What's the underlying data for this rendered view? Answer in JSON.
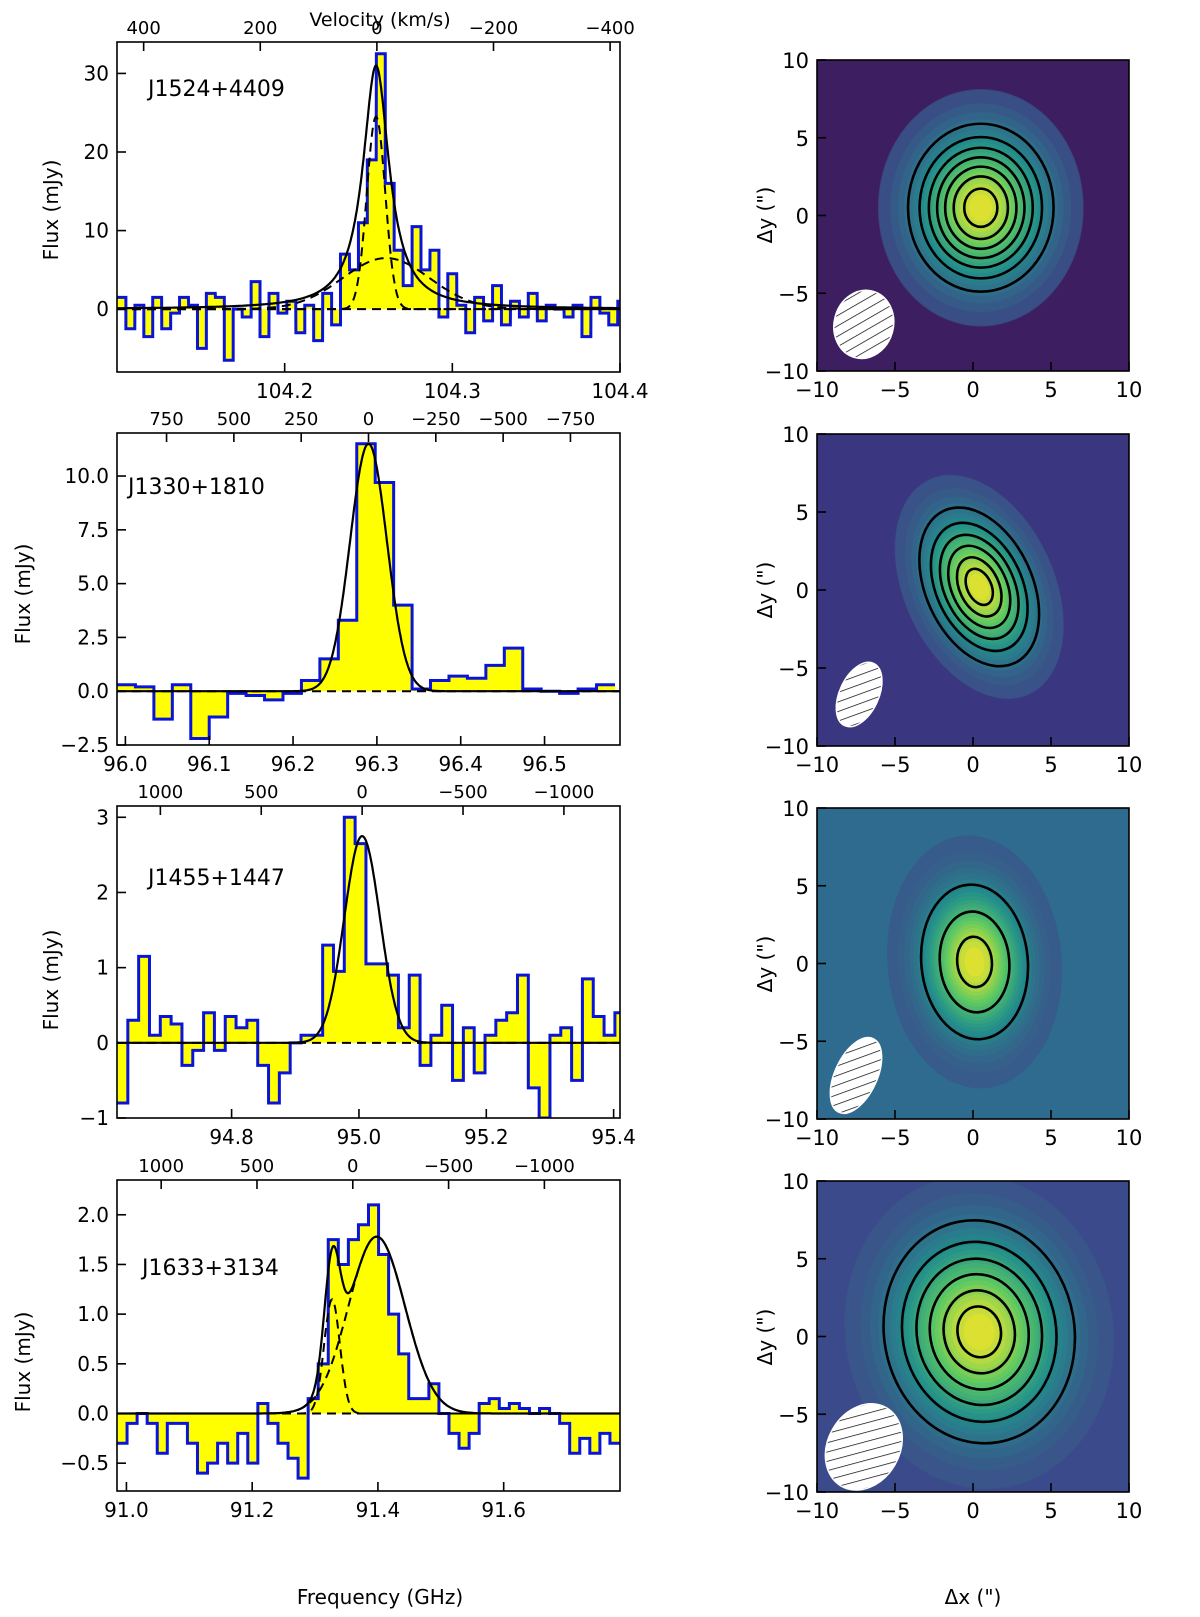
{
  "chart_data": [
    {
      "type": "spectrum",
      "source": "J1524+4409",
      "xlabel": "",
      "ylabel": "Flux (mJy)",
      "top_label": "Velocity (km/s)",
      "xlim": [
        104.1,
        104.4
      ],
      "ylim": [
        -8,
        34
      ],
      "xticks": [
        "104.2",
        "104.3",
        "104.4"
      ],
      "xtick_values": [
        104.2,
        104.3,
        104.4
      ],
      "yticks": [
        "0",
        "10",
        "20",
        "30"
      ],
      "ytick_values": [
        0,
        10,
        20,
        30
      ],
      "vticks": [
        "400",
        "200",
        "0",
        "−200",
        "−400"
      ],
      "vtick_values": [
        400,
        200,
        0,
        -200,
        -400
      ],
      "nu0": 104.255,
      "channels": [
        {
          "x": 104.1,
          "y": 1.5
        },
        {
          "x": 104.1053,
          "y": -2.5
        },
        {
          "x": 104.1107,
          "y": 0.5
        },
        {
          "x": 104.116,
          "y": -3.5
        },
        {
          "x": 104.1213,
          "y": 1.5
        },
        {
          "x": 104.1267,
          "y": -2.5
        },
        {
          "x": 104.132,
          "y": -0.5
        },
        {
          "x": 104.1373,
          "y": 1.5
        },
        {
          "x": 104.1427,
          "y": 0.5
        },
        {
          "x": 104.148,
          "y": -5.0
        },
        {
          "x": 104.1533,
          "y": 2.0
        },
        {
          "x": 104.1587,
          "y": 1.5
        },
        {
          "x": 104.164,
          "y": -6.5
        },
        {
          "x": 104.1693,
          "y": 0.0
        },
        {
          "x": 104.1747,
          "y": -1.0
        },
        {
          "x": 104.18,
          "y": 3.5
        },
        {
          "x": 104.1853,
          "y": -3.5
        },
        {
          "x": 104.1907,
          "y": 2.0
        },
        {
          "x": 104.196,
          "y": -0.5
        },
        {
          "x": 104.2013,
          "y": 1.0
        },
        {
          "x": 104.2067,
          "y": -3.0
        },
        {
          "x": 104.212,
          "y": 0.5
        },
        {
          "x": 104.2173,
          "y": -4.0
        },
        {
          "x": 104.2227,
          "y": 2.0
        },
        {
          "x": 104.228,
          "y": -2.0
        },
        {
          "x": 104.2333,
          "y": 7.0
        },
        {
          "x": 104.2387,
          "y": 5.0
        },
        {
          "x": 104.244,
          "y": 11.0
        },
        {
          "x": 104.2493,
          "y": 19.0
        },
        {
          "x": 104.2547,
          "y": 32.5
        },
        {
          "x": 104.26,
          "y": 16.0
        },
        {
          "x": 104.2653,
          "y": 7.5
        },
        {
          "x": 104.2707,
          "y": 3.0
        },
        {
          "x": 104.276,
          "y": 10.5
        },
        {
          "x": 104.2813,
          "y": 5.0
        },
        {
          "x": 104.2867,
          "y": 7.5
        },
        {
          "x": 104.292,
          "y": -1.0
        },
        {
          "x": 104.2973,
          "y": 4.5
        },
        {
          "x": 104.3027,
          "y": 0.5
        },
        {
          "x": 104.308,
          "y": -3.0
        },
        {
          "x": 104.3133,
          "y": 1.5
        },
        {
          "x": 104.3187,
          "y": -1.5
        },
        {
          "x": 104.324,
          "y": 3.0
        },
        {
          "x": 104.3293,
          "y": -2.0
        },
        {
          "x": 104.3347,
          "y": 1.0
        },
        {
          "x": 104.34,
          "y": -1.0
        },
        {
          "x": 104.3453,
          "y": 2.0
        },
        {
          "x": 104.3507,
          "y": -1.5
        },
        {
          "x": 104.356,
          "y": 0.5
        },
        {
          "x": 104.3613,
          "y": 0.0
        },
        {
          "x": 104.3667,
          "y": -1.0
        },
        {
          "x": 104.372,
          "y": 0.5
        },
        {
          "x": 104.3773,
          "y": -3.5
        },
        {
          "x": 104.3827,
          "y": 1.5
        },
        {
          "x": 104.388,
          "y": -0.5
        },
        {
          "x": 104.3933,
          "y": -2.0
        },
        {
          "x": 104.3987,
          "y": 1.0
        }
      ],
      "components": [
        {
          "amp": 24.5,
          "center": 104.2545,
          "sigma": 0.0055,
          "shape": "gauss"
        },
        {
          "amp": 6.5,
          "center": 104.2605,
          "sigma": 0.026,
          "shape": "gauss"
        }
      ],
      "show_components": true,
      "total_profile": "lorentz",
      "total": {
        "amp": 31.0,
        "center": 104.2545,
        "gamma": 0.0095
      }
    },
    {
      "type": "spectrum",
      "source": "J1330+1810",
      "xlabel": "",
      "ylabel": "Flux (mJy)",
      "top_label": "",
      "xlim": [
        95.99,
        96.59
      ],
      "ylim": [
        -2.5,
        12.0
      ],
      "xticks": [
        "96.0",
        "96.1",
        "96.2",
        "96.3",
        "96.4",
        "96.5"
      ],
      "xtick_values": [
        96.0,
        96.1,
        96.2,
        96.3,
        96.4,
        96.5
      ],
      "yticks": [
        "−2.5",
        "0.0",
        "2.5",
        "5.0",
        "7.5",
        "10.0"
      ],
      "ytick_values": [
        -2.5,
        0,
        2.5,
        5,
        7.5,
        10
      ],
      "vticks": [
        "750",
        "500",
        "250",
        "0",
        "−250",
        "−500",
        "−750"
      ],
      "vtick_values": [
        750,
        500,
        250,
        0,
        -250,
        -500,
        -750
      ],
      "nu0": 96.29,
      "channels": [
        {
          "x": 95.99,
          "y": 0.3
        },
        {
          "x": 96.012,
          "y": 0.2
        },
        {
          "x": 96.034,
          "y": -1.3
        },
        {
          "x": 96.056,
          "y": 0.3
        },
        {
          "x": 96.078,
          "y": -2.2
        },
        {
          "x": 96.1,
          "y": -1.2
        },
        {
          "x": 96.122,
          "y": -0.1
        },
        {
          "x": 96.144,
          "y": -0.2
        },
        {
          "x": 96.166,
          "y": -0.4
        },
        {
          "x": 96.188,
          "y": -0.1
        },
        {
          "x": 96.21,
          "y": 0.5
        },
        {
          "x": 96.232,
          "y": 1.5
        },
        {
          "x": 96.254,
          "y": 3.3
        },
        {
          "x": 96.276,
          "y": 11.5
        },
        {
          "x": 96.298,
          "y": 9.7
        },
        {
          "x": 96.32,
          "y": 4.0
        },
        {
          "x": 96.342,
          "y": 0.1
        },
        {
          "x": 96.364,
          "y": 0.5
        },
        {
          "x": 96.386,
          "y": 0.7
        },
        {
          "x": 96.408,
          "y": 0.6
        },
        {
          "x": 96.43,
          "y": 1.2
        },
        {
          "x": 96.452,
          "y": 2.0
        },
        {
          "x": 96.474,
          "y": 0.1
        },
        {
          "x": 96.496,
          "y": 0.0
        },
        {
          "x": 96.518,
          "y": -0.1
        },
        {
          "x": 96.54,
          "y": 0.1
        },
        {
          "x": 96.562,
          "y": 0.3
        }
      ],
      "components": [],
      "show_components": false,
      "total_profile": "gauss",
      "total": {
        "amp": 11.5,
        "center": 96.29,
        "sigma": 0.022
      }
    },
    {
      "type": "spectrum",
      "source": "J1455+1447",
      "xlabel": "",
      "ylabel": "Flux (mJy)",
      "top_label": "",
      "xlim": [
        94.62,
        95.41
      ],
      "ylim": [
        -1.0,
        3.15
      ],
      "xticks": [
        "94.8",
        "95.0",
        "95.2",
        "95.4"
      ],
      "xtick_values": [
        94.8,
        95.0,
        95.2,
        95.4
      ],
      "yticks": [
        "−1",
        "0",
        "1",
        "2",
        "3"
      ],
      "ytick_values": [
        -1,
        0,
        1,
        2,
        3
      ],
      "vticks": [
        "1000",
        "500",
        "0",
        "−500",
        "−1000"
      ],
      "vtick_values": [
        1000,
        500,
        0,
        -500,
        -1000
      ],
      "nu0": 95.005,
      "channels": [
        {
          "x": 94.62,
          "y": -0.8
        },
        {
          "x": 94.637,
          "y": 0.3
        },
        {
          "x": 94.654,
          "y": 1.15
        },
        {
          "x": 94.671,
          "y": 0.1
        },
        {
          "x": 94.688,
          "y": 0.35
        },
        {
          "x": 94.705,
          "y": 0.25
        },
        {
          "x": 94.722,
          "y": -0.3
        },
        {
          "x": 94.739,
          "y": -0.1
        },
        {
          "x": 94.756,
          "y": 0.4
        },
        {
          "x": 94.773,
          "y": -0.1
        },
        {
          "x": 94.79,
          "y": 0.35
        },
        {
          "x": 94.807,
          "y": 0.2
        },
        {
          "x": 94.824,
          "y": 0.3
        },
        {
          "x": 94.841,
          "y": -0.3
        },
        {
          "x": 94.858,
          "y": -0.8
        },
        {
          "x": 94.875,
          "y": -0.4
        },
        {
          "x": 94.892,
          "y": 0.0
        },
        {
          "x": 94.909,
          "y": 0.1
        },
        {
          "x": 94.926,
          "y": 0.1
        },
        {
          "x": 94.943,
          "y": 1.3
        },
        {
          "x": 94.96,
          "y": 0.95
        },
        {
          "x": 94.977,
          "y": 3.0
        },
        {
          "x": 94.994,
          "y": 2.65
        },
        {
          "x": 95.011,
          "y": 1.05
        },
        {
          "x": 95.028,
          "y": 1.05
        },
        {
          "x": 95.045,
          "y": 0.9
        },
        {
          "x": 95.062,
          "y": 0.2
        },
        {
          "x": 95.079,
          "y": 0.9
        },
        {
          "x": 95.096,
          "y": -0.3
        },
        {
          "x": 95.113,
          "y": 0.1
        },
        {
          "x": 95.13,
          "y": 0.5
        },
        {
          "x": 95.147,
          "y": -0.5
        },
        {
          "x": 95.164,
          "y": 0.2
        },
        {
          "x": 95.181,
          "y": -0.4
        },
        {
          "x": 95.198,
          "y": 0.1
        },
        {
          "x": 95.215,
          "y": 0.3
        },
        {
          "x": 95.232,
          "y": 0.4
        },
        {
          "x": 95.249,
          "y": 0.9
        },
        {
          "x": 95.266,
          "y": -0.6
        },
        {
          "x": 95.283,
          "y": -1.0
        },
        {
          "x": 95.3,
          "y": 0.1
        },
        {
          "x": 95.317,
          "y": 0.2
        },
        {
          "x": 95.334,
          "y": -0.5
        },
        {
          "x": 95.351,
          "y": 0.85
        },
        {
          "x": 95.368,
          "y": 0.35
        },
        {
          "x": 95.385,
          "y": 0.1
        },
        {
          "x": 95.402,
          "y": 0.4
        }
      ],
      "components": [],
      "show_components": false,
      "total_profile": "gauss",
      "total": {
        "amp": 2.75,
        "center": 95.005,
        "sigma": 0.028
      }
    },
    {
      "type": "spectrum",
      "source": "J1633+3134",
      "xlabel": "Frequency (GHz)",
      "ylabel": "Flux (mJy)",
      "top_label": "",
      "xlim": [
        90.985,
        91.785
      ],
      "ylim": [
        -0.78,
        2.35
      ],
      "xticks": [
        "91.0",
        "91.2",
        "91.4",
        "91.6"
      ],
      "xtick_values": [
        91.0,
        91.2,
        91.4,
        91.6
      ],
      "yticks": [
        "−0.5",
        "0.0",
        "0.5",
        "1.0",
        "1.5",
        "2.0"
      ],
      "ytick_values": [
        -0.5,
        0,
        0.5,
        1.0,
        1.5,
        2.0
      ],
      "vticks": [
        "1000",
        "500",
        "0",
        "−500",
        "−1000"
      ],
      "vtick_values": [
        1000,
        500,
        0,
        -500,
        -1000
      ],
      "nu0": 91.36,
      "channels": [
        {
          "x": 90.985,
          "y": -0.3
        },
        {
          "x": 91.001,
          "y": -0.1
        },
        {
          "x": 91.017,
          "y": 0.0
        },
        {
          "x": 91.033,
          "y": -0.1
        },
        {
          "x": 91.049,
          "y": -0.4
        },
        {
          "x": 91.065,
          "y": -0.1
        },
        {
          "x": 91.081,
          "y": -0.1
        },
        {
          "x": 91.097,
          "y": -0.3
        },
        {
          "x": 91.113,
          "y": -0.6
        },
        {
          "x": 91.129,
          "y": -0.5
        },
        {
          "x": 91.145,
          "y": -0.3
        },
        {
          "x": 91.161,
          "y": -0.5
        },
        {
          "x": 91.177,
          "y": -0.2
        },
        {
          "x": 91.193,
          "y": -0.5
        },
        {
          "x": 91.209,
          "y": 0.1
        },
        {
          "x": 91.225,
          "y": -0.1
        },
        {
          "x": 91.241,
          "y": -0.3
        },
        {
          "x": 91.257,
          "y": -0.45
        },
        {
          "x": 91.273,
          "y": -0.65
        },
        {
          "x": 91.289,
          "y": 0.15
        },
        {
          "x": 91.305,
          "y": 0.5
        },
        {
          "x": 91.321,
          "y": 1.75
        },
        {
          "x": 91.337,
          "y": 1.5
        },
        {
          "x": 91.353,
          "y": 1.75
        },
        {
          "x": 91.369,
          "y": 1.9
        },
        {
          "x": 91.385,
          "y": 2.1
        },
        {
          "x": 91.401,
          "y": 1.6
        },
        {
          "x": 91.417,
          "y": 1.0
        },
        {
          "x": 91.433,
          "y": 0.6
        },
        {
          "x": 91.449,
          "y": 0.15
        },
        {
          "x": 91.465,
          "y": 0.15
        },
        {
          "x": 91.481,
          "y": 0.3
        },
        {
          "x": 91.497,
          "y": 0.0
        },
        {
          "x": 91.513,
          "y": -0.2
        },
        {
          "x": 91.529,
          "y": -0.35
        },
        {
          "x": 91.545,
          "y": -0.2
        },
        {
          "x": 91.561,
          "y": 0.1
        },
        {
          "x": 91.577,
          "y": 0.15
        },
        {
          "x": 91.593,
          "y": 0.05
        },
        {
          "x": 91.609,
          "y": 0.1
        },
        {
          "x": 91.625,
          "y": 0.05
        },
        {
          "x": 91.641,
          "y": 0.0
        },
        {
          "x": 91.657,
          "y": 0.05
        },
        {
          "x": 91.673,
          "y": 0.0
        },
        {
          "x": 91.689,
          "y": -0.1
        },
        {
          "x": 91.705,
          "y": -0.4
        },
        {
          "x": 91.721,
          "y": -0.25
        },
        {
          "x": 91.737,
          "y": -0.4
        },
        {
          "x": 91.753,
          "y": -0.2
        },
        {
          "x": 91.769,
          "y": -0.3
        }
      ],
      "components": [
        {
          "amp": 1.15,
          "center": 91.327,
          "sigma": 0.0125,
          "shape": "gauss"
        },
        {
          "amp": 1.78,
          "center": 91.398,
          "sigma": 0.045,
          "shape": "gauss"
        }
      ],
      "show_components": true,
      "total_profile": "sum",
      "total": null
    }
  ],
  "maps": [
    {
      "xlabel": "",
      "ylabel": "Δy (\")",
      "xlim": [
        -10,
        10
      ],
      "ylim": [
        -10,
        10
      ],
      "ticks": [
        "−10",
        "−5",
        "0",
        "5",
        "10"
      ],
      "tick_values": [
        -10,
        -5,
        0,
        5,
        10
      ],
      "background": "#3d1f61",
      "source": {
        "x": 0.5,
        "y": 0.5,
        "sx": 2.6,
        "sy": 3.0,
        "angle_deg": 0
      },
      "contour_levels": [
        0.2,
        0.32,
        0.44,
        0.56,
        0.68,
        0.8,
        0.92
      ],
      "beam": {
        "x": -7.0,
        "y": -7.0,
        "major": 4.4,
        "minor": 3.8,
        "angle_deg": 15
      }
    },
    {
      "xlabel": "",
      "ylabel": "Δy (\")",
      "xlim": [
        -10,
        10
      ],
      "ylim": [
        -10,
        10
      ],
      "ticks": [
        "−10",
        "−5",
        "0",
        "5",
        "10"
      ],
      "tick_values": [
        -10,
        -5,
        0,
        5,
        10
      ],
      "background": "#3a3680",
      "source": {
        "x": 0.4,
        "y": 0.2,
        "sx": 1.9,
        "sy": 3.0,
        "angle_deg": 25
      },
      "contour_levels": [
        0.2,
        0.35,
        0.5,
        0.65,
        0.8,
        0.92
      ],
      "beam": {
        "x": -7.3,
        "y": -6.7,
        "major": 4.4,
        "minor": 2.5,
        "angle_deg": 25
      }
    },
    {
      "xlabel": "",
      "ylabel": "Δy (\")",
      "xlim": [
        -10,
        10
      ],
      "ylim": [
        -10,
        10
      ],
      "ticks": [
        "−10",
        "−5",
        "0",
        "5",
        "10"
      ],
      "tick_values": [
        -10,
        -5,
        0,
        5,
        10
      ],
      "background": "#2f6b8e",
      "source": {
        "x": 0.1,
        "y": 0.1,
        "sx": 2.2,
        "sy": 3.2,
        "angle_deg": 5
      },
      "contour_levels": [
        0.3,
        0.6,
        0.88
      ],
      "beam": {
        "x": -7.5,
        "y": -7.2,
        "major": 5.2,
        "minor": 2.7,
        "angle_deg": 25
      }
    },
    {
      "xlabel": "Δx (\")",
      "ylabel": "Δy (\")",
      "xlim": [
        -10,
        10
      ],
      "ylim": [
        -10,
        10
      ],
      "ticks": [
        "−10",
        "−5",
        "0",
        "5",
        "10"
      ],
      "tick_values": [
        -10,
        -5,
        0,
        5,
        10
      ],
      "background": "#3b4a8a",
      "source": {
        "x": 0.4,
        "y": 0.3,
        "sx": 3.4,
        "sy": 4.0,
        "angle_deg": 10
      },
      "contour_levels": [
        0.2,
        0.35,
        0.5,
        0.65,
        0.8,
        0.92
      ],
      "beam": {
        "x": -7.0,
        "y": -7.1,
        "major": 5.8,
        "minor": 4.6,
        "angle_deg": 30
      }
    }
  ],
  "colors": {
    "fill": "#ffff00",
    "histogram": "#0a14d8",
    "fit": "#000000"
  }
}
